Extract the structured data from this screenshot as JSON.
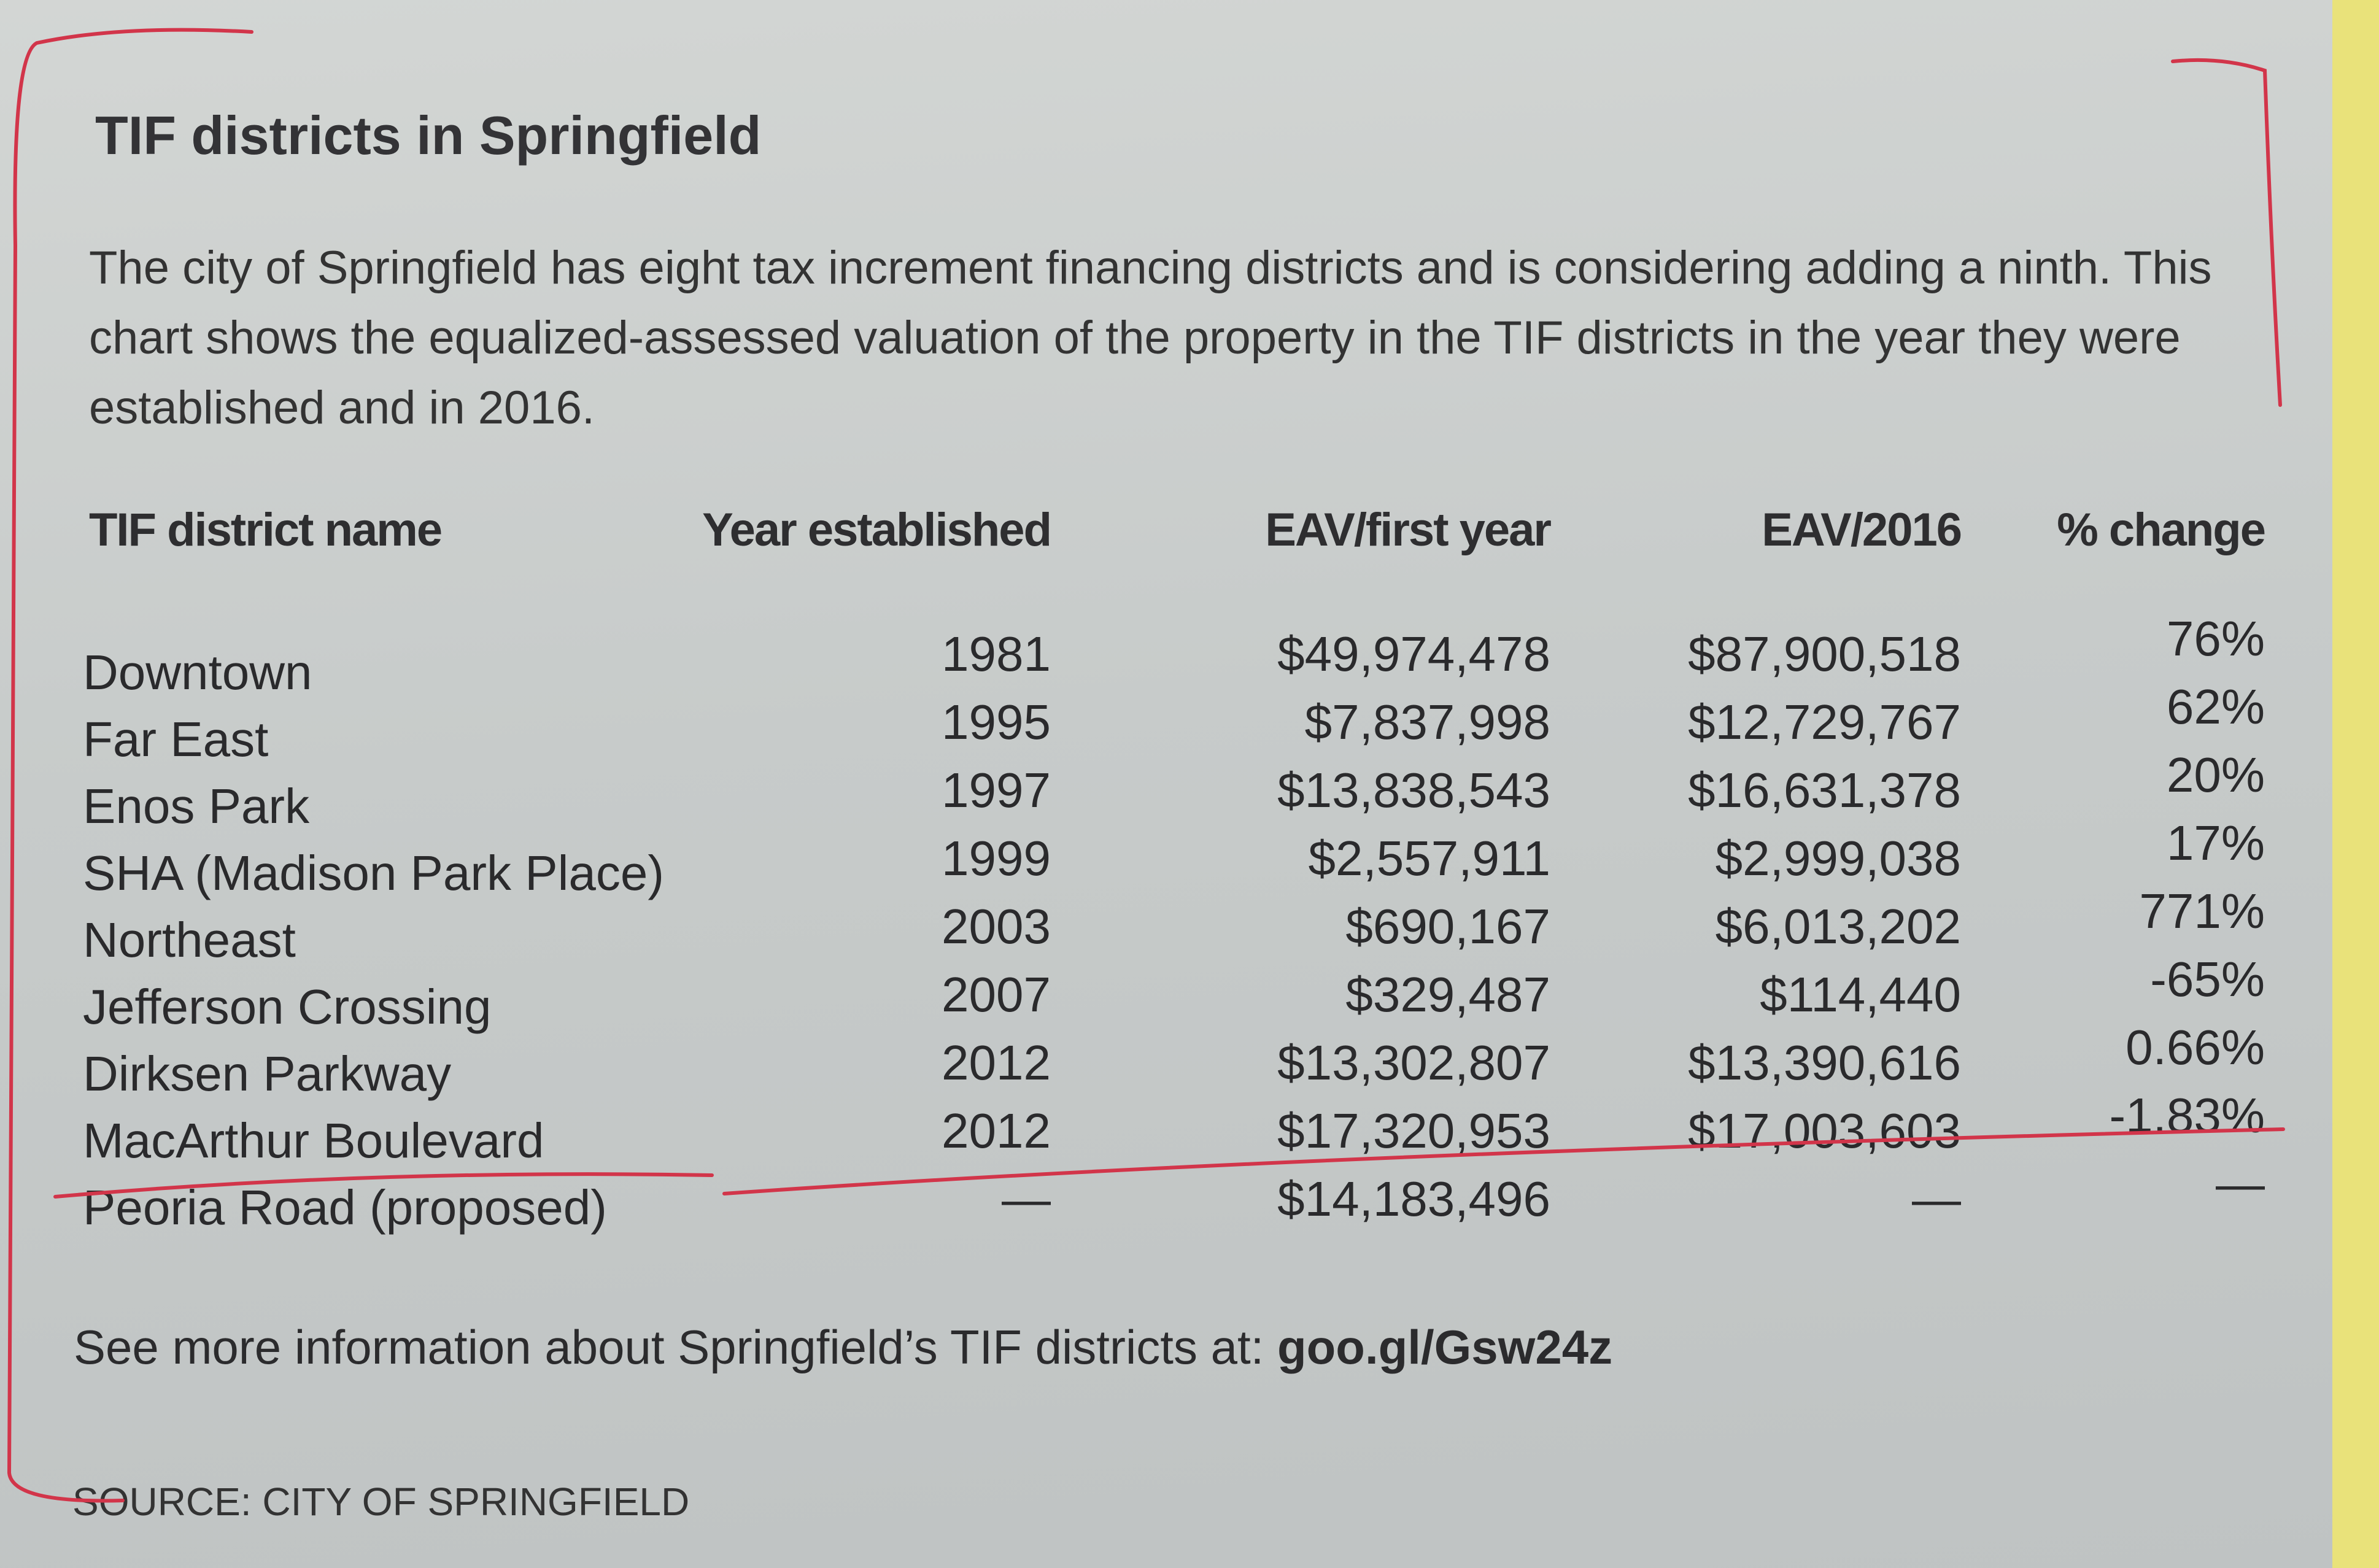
{
  "header": {
    "title": "TIF districts in Springfield",
    "description": "The city of Springfield has eight tax increment financing districts and is considering adding a ninth. This chart shows the equalized-assessed valuation of the property in the TIF districts in the year they were established and in 2016."
  },
  "table": {
    "columns": [
      "TIF district name",
      "Year established",
      "EAV/first year",
      "EAV/2016",
      "% change"
    ],
    "rows": [
      [
        "Downtown",
        "1981",
        "$49,974,478",
        "$87,900,518",
        "76%"
      ],
      [
        "Far East",
        "1995",
        "$7,837,998",
        "$12,729,767",
        "62%"
      ],
      [
        "Enos Park",
        "1997",
        "$13,838,543",
        "$16,631,378",
        "20%"
      ],
      [
        "SHA (Madison Park Place)",
        "1999",
        "$2,557,911",
        "$2,999,038",
        "17%"
      ],
      [
        "Northeast",
        "2003",
        "$690,167",
        "$6,013,202",
        "771%"
      ],
      [
        "Jefferson Crossing",
        "2007",
        "$329,487",
        "$114,440",
        "-65%"
      ],
      [
        "Dirksen Parkway",
        "2012",
        "$13,302,807",
        "$13,390,616",
        "0.66%"
      ],
      [
        "MacArthur Boulevard",
        "2012",
        "$17,320,953",
        "$17,003,603",
        "-1.83%"
      ],
      [
        "Peoria Road (proposed)",
        "—",
        "$14,183,496",
        "—",
        "—"
      ]
    ]
  },
  "footer": {
    "note": "See more information about Springfield’s TIF districts at:",
    "link": "goo.gl/Gsw24z"
  },
  "source": "SOURCE: CITY OF SPRINGFIELD"
}
